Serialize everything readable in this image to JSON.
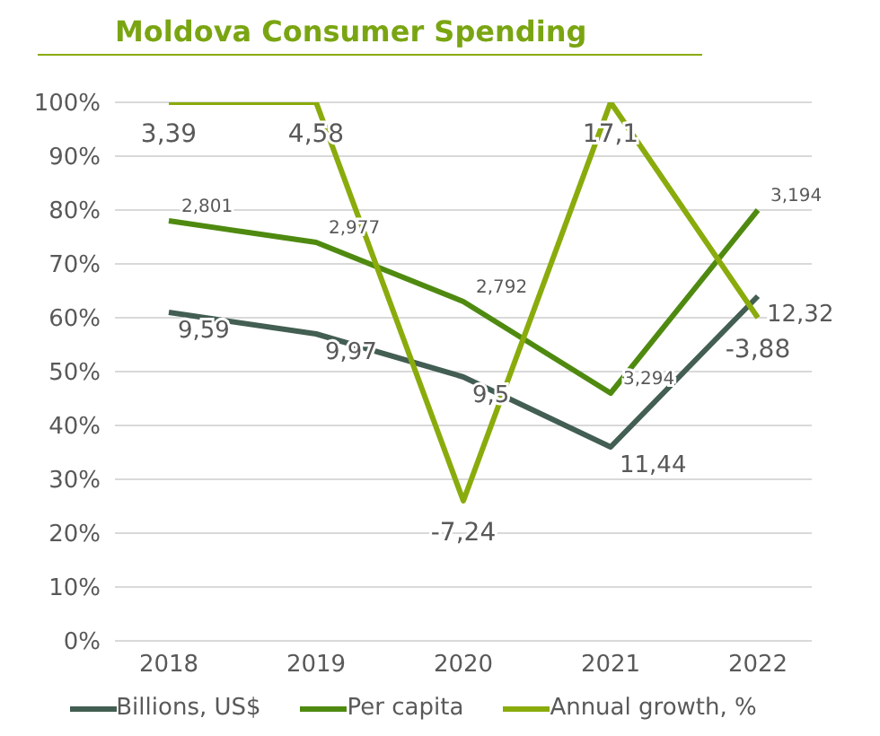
{
  "chart_data": {
    "type": "line",
    "title": "Moldova Consumer Spending",
    "categories": [
      "2018",
      "2019",
      "2020",
      "2021",
      "2022"
    ],
    "series": [
      {
        "name": "Billions, US$",
        "color": "#435e52",
        "values": [
          61,
          57,
          49,
          36,
          64
        ]
      },
      {
        "name": "Per capita",
        "color": "#4f8a10",
        "values": [
          78,
          74,
          63,
          46,
          80
        ]
      },
      {
        "name": "Annual growth, %",
        "color": "#8aab0c",
        "values": [
          100,
          100,
          26,
          100,
          60
        ]
      }
    ],
    "annotations": [
      {
        "text": "9,59",
        "x": "2018",
        "y": 61
      },
      {
        "text": "9,97",
        "x": "2019",
        "y": 57
      },
      {
        "text": "9,5",
        "x": "2020",
        "y": 49
      },
      {
        "text": "11,44",
        "x": "2021",
        "y": 36
      },
      {
        "text": "12,32",
        "x": "2022",
        "y": 64
      },
      {
        "text": "2,801",
        "x": "2018",
        "y": 78
      },
      {
        "text": "2,977",
        "x": "2019",
        "y": 74
      },
      {
        "text": "2,792",
        "x": "2020",
        "y": 63
      },
      {
        "text": "3,294",
        "x": "2021",
        "y": 46
      },
      {
        "text": "3,194",
        "x": "2022",
        "y": 80
      },
      {
        "text": "3,39",
        "x": "2018",
        "y": 100
      },
      {
        "text": "4,58",
        "x": "2019",
        "y": 100
      },
      {
        "text": "-7,24",
        "x": "2020",
        "y": 26
      },
      {
        "text": "17,1",
        "x": "2021",
        "y": 100
      },
      {
        "text": "-3,88",
        "x": "2022",
        "y": 60
      }
    ],
    "ylim": [
      0,
      100
    ],
    "yticks": [
      {
        "value": 0,
        "label": "0%"
      },
      {
        "value": 10,
        "label": "10%"
      },
      {
        "value": 20,
        "label": "20%"
      },
      {
        "value": 30,
        "label": "30%"
      },
      {
        "value": 40,
        "label": "40%"
      },
      {
        "value": 50,
        "label": "50%"
      },
      {
        "value": 60,
        "label": "60%"
      },
      {
        "value": 70,
        "label": "70%"
      },
      {
        "value": 80,
        "label": "80%"
      },
      {
        "value": 90,
        "label": "90%"
      },
      {
        "value": 100,
        "label": "100%"
      }
    ],
    "grid": "y",
    "legend": "bottom",
    "marker": "none",
    "line_style": "solid"
  }
}
